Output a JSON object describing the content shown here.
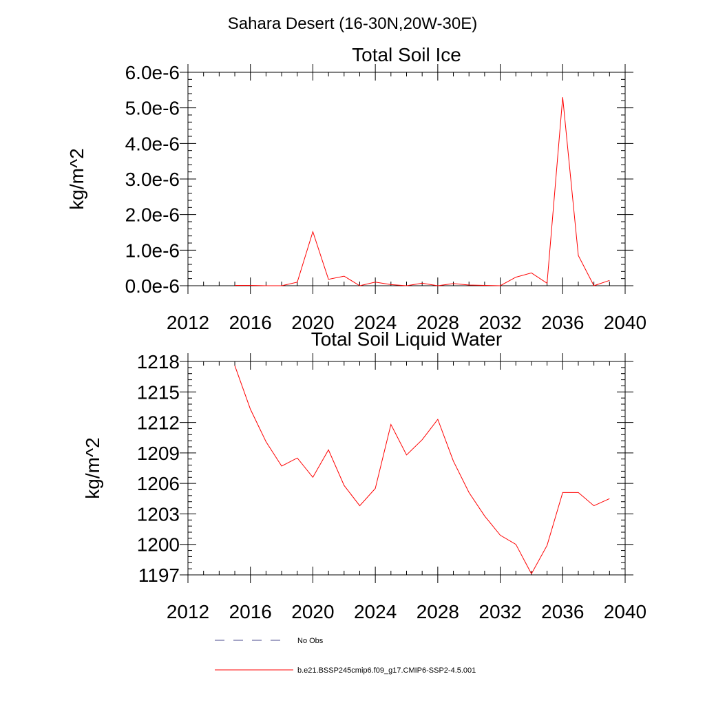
{
  "figure": {
    "title": "Sahara Desert (16-30N,20W-30E)"
  },
  "colors": {
    "series": "#ff0000",
    "obs": "#4a4a8c",
    "axis": "#000000"
  },
  "chart_data": [
    {
      "type": "line",
      "title": "Total Soil Ice",
      "ylabel": "kg/m^2",
      "xlim": [
        2012,
        2040
      ],
      "ylim": [
        0,
        6e-06
      ],
      "xticks": [
        2012,
        2016,
        2020,
        2024,
        2028,
        2032,
        2036,
        2040
      ],
      "xtick_labels": [
        "2012",
        "2016",
        "2020",
        "2024",
        "2028",
        "2032",
        "2036",
        "2040"
      ],
      "yticks": [
        0,
        1e-06,
        2e-06,
        3e-06,
        4e-06,
        5e-06,
        6e-06
      ],
      "ytick_labels": [
        "0.0e-6",
        "1.0e-6",
        "2.0e-6",
        "3.0e-6",
        "4.0e-6",
        "5.0e-6",
        "6.0e-6"
      ],
      "grid": false,
      "series": [
        {
          "name": "b.e21.BSSP245cmip6.f09_g17.CMIP6-SSP2-4.5.001",
          "x": [
            2015,
            2016,
            2017,
            2018,
            2019,
            2020,
            2021,
            2022,
            2023,
            2024,
            2025,
            2026,
            2027,
            2028,
            2029,
            2030,
            2031,
            2032,
            2033,
            2034,
            2035,
            2036,
            2037,
            2038,
            2039
          ],
          "y": [
            1e-08,
            1e-08,
            0.0,
            0.0,
            1e-07,
            1.52e-06,
            1.8e-07,
            2.7e-07,
            0.0,
            1e-07,
            3e-08,
            0.0,
            7e-08,
            0.0,
            6e-08,
            2e-08,
            1e-08,
            0.0,
            2.4e-07,
            3.6e-07,
            7e-08,
            5.3e-06,
            8.5e-07,
            0.0,
            1.5e-07
          ]
        }
      ]
    },
    {
      "type": "line",
      "title": "Total Soil Liquid Water",
      "ylabel": "kg/m^2",
      "xlim": [
        2012,
        2040
      ],
      "ylim": [
        1197,
        1218
      ],
      "xticks": [
        2012,
        2016,
        2020,
        2024,
        2028,
        2032,
        2036,
        2040
      ],
      "xtick_labels": [
        "2012",
        "2016",
        "2020",
        "2024",
        "2028",
        "2032",
        "2036",
        "2040"
      ],
      "yticks": [
        1197,
        1200,
        1203,
        1206,
        1209,
        1212,
        1215,
        1218
      ],
      "ytick_labels": [
        "1197",
        "1200",
        "1203",
        "1206",
        "1209",
        "1212",
        "1215",
        "1218"
      ],
      "grid": false,
      "series": [
        {
          "name": "b.e21.BSSP245cmip6.f09_g17.CMIP6-SSP2-4.5.001",
          "x": [
            2015,
            2016,
            2017,
            2018,
            2019,
            2020,
            2021,
            2022,
            2023,
            2024,
            2025,
            2026,
            2027,
            2028,
            2029,
            2030,
            2031,
            2032,
            2033,
            2034,
            2035,
            2036,
            2037,
            2038,
            2039
          ],
          "y": [
            1217.6,
            1213.3,
            1210.1,
            1207.7,
            1208.5,
            1206.6,
            1209.3,
            1205.8,
            1203.8,
            1205.5,
            1211.8,
            1208.8,
            1210.3,
            1212.3,
            1208.2,
            1205.1,
            1202.8,
            1200.9,
            1200.0,
            1197.1,
            1199.9,
            1205.1,
            1205.1,
            1203.8,
            1204.5
          ]
        }
      ]
    }
  ],
  "legend": {
    "placement": "bottom",
    "items": [
      {
        "label": "No Obs",
        "style": "dashed",
        "color": "#4a4a8c"
      },
      {
        "label": "b.e21.BSSP245cmip6.f09_g17.CMIP6-SSP2-4.5.001",
        "style": "solid",
        "color": "#ff0000"
      }
    ]
  }
}
